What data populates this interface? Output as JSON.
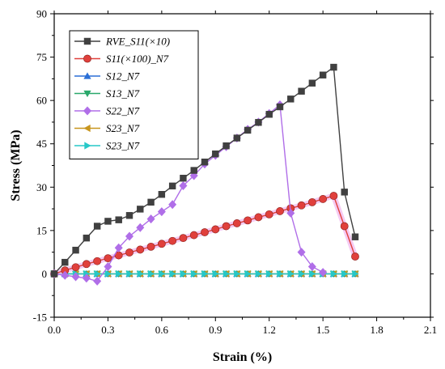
{
  "chart_data": {
    "type": "line",
    "title": "",
    "xlabel": "Strain (%)",
    "ylabel": "Stress (MPa)",
    "xlim": [
      0.0,
      2.1
    ],
    "ylim": [
      -15,
      90
    ],
    "xticks": [
      "0.0",
      "0.3",
      "0.6",
      "0.9",
      "1.2",
      "1.5",
      "1.8",
      "2.1"
    ],
    "yticks": [
      "-15",
      "0",
      "15",
      "30",
      "45",
      "60",
      "75",
      "90"
    ],
    "grid": false,
    "legend_position": "top-left",
    "series": [
      {
        "name": "RVE_S11(×10)",
        "color": "#404040",
        "marker": "square",
        "x": [
          0.0,
          0.06,
          0.12,
          0.18,
          0.24,
          0.3,
          0.36,
          0.42,
          0.48,
          0.54,
          0.6,
          0.66,
          0.72,
          0.78,
          0.84,
          0.9,
          0.96,
          1.02,
          1.08,
          1.14,
          1.2,
          1.26,
          1.32,
          1.38,
          1.44,
          1.5,
          1.56,
          1.62,
          1.68
        ],
        "y": [
          0.0,
          4.0,
          8.2,
          12.4,
          16.5,
          18.2,
          18.7,
          20.2,
          22.4,
          24.8,
          27.5,
          30.4,
          33.1,
          35.8,
          38.7,
          41.5,
          44.3,
          47.0,
          49.7,
          52.4,
          55.2,
          57.8,
          60.5,
          63.2,
          66.0,
          68.8,
          71.5,
          28.3,
          12.8
        ]
      },
      {
        "name": "S11(×100)_N7",
        "color": "#e0403c",
        "marker": "circle",
        "x": [
          0.0,
          0.06,
          0.12,
          0.18,
          0.24,
          0.3,
          0.36,
          0.42,
          0.48,
          0.54,
          0.6,
          0.66,
          0.72,
          0.78,
          0.84,
          0.9,
          0.96,
          1.02,
          1.08,
          1.14,
          1.2,
          1.26,
          1.32,
          1.38,
          1.44,
          1.5,
          1.56,
          1.62,
          1.68
        ],
        "y": [
          0.0,
          1.2,
          2.3,
          3.4,
          4.4,
          5.4,
          6.4,
          7.4,
          8.4,
          9.4,
          10.4,
          11.4,
          12.4,
          13.4,
          14.4,
          15.4,
          16.5,
          17.5,
          18.5,
          19.6,
          20.6,
          21.7,
          22.7,
          23.7,
          24.8,
          25.9,
          27.0,
          16.5,
          6.0
        ]
      },
      {
        "name": "S12_N7",
        "color": "#2b6fd6",
        "marker": "triangle-up",
        "x": [
          0.0,
          0.06,
          0.12,
          0.18,
          0.24,
          0.3,
          0.36,
          0.42,
          0.48,
          0.54,
          0.6,
          0.66,
          0.72,
          0.78,
          0.84,
          0.9,
          0.96,
          1.02,
          1.08,
          1.14,
          1.2,
          1.26,
          1.32,
          1.38,
          1.44,
          1.5,
          1.56,
          1.62,
          1.68
        ],
        "y": [
          0,
          0,
          0,
          0,
          0,
          0,
          0,
          0,
          0,
          0,
          0,
          0,
          0,
          0,
          0,
          0,
          0,
          0,
          0,
          0,
          0,
          0,
          0,
          0,
          0,
          0,
          0,
          0,
          0
        ]
      },
      {
        "name": "S13_N7",
        "color": "#2aa86b",
        "marker": "triangle-down",
        "x": [
          0.0,
          0.06,
          0.12,
          0.18,
          0.24,
          0.3,
          0.36,
          0.42,
          0.48,
          0.54,
          0.6,
          0.66,
          0.72,
          0.78,
          0.84,
          0.9,
          0.96,
          1.02,
          1.08,
          1.14,
          1.2,
          1.26,
          1.32,
          1.38,
          1.44,
          1.5,
          1.56,
          1.62,
          1.68
        ],
        "y": [
          0,
          0,
          0,
          0,
          0,
          0,
          0,
          0,
          0,
          0,
          0,
          0,
          0,
          0,
          0,
          0,
          0,
          0,
          0,
          0,
          0,
          0,
          0,
          0,
          0,
          0,
          0,
          0,
          0
        ]
      },
      {
        "name": "S22_N7",
        "color": "#b06ee8",
        "marker": "diamond",
        "x": [
          0.0,
          0.06,
          0.12,
          0.18,
          0.24,
          0.3,
          0.36,
          0.42,
          0.48,
          0.54,
          0.6,
          0.66,
          0.72,
          0.78,
          0.84,
          0.9,
          0.96,
          1.02,
          1.08,
          1.14,
          1.2,
          1.26,
          1.32,
          1.38,
          1.44,
          1.5
        ],
        "y": [
          0.0,
          -0.5,
          -1.0,
          -1.5,
          -2.5,
          2.5,
          9.0,
          13.0,
          16.0,
          19.0,
          21.5,
          24.0,
          30.5,
          34.0,
          38.0,
          41.0,
          44.0,
          47.0,
          50.0,
          52.5,
          55.5,
          58.5,
          21.0,
          7.5,
          2.5,
          0.5
        ]
      },
      {
        "name": "S23_N7",
        "color": "#c8961e",
        "marker": "triangle-left",
        "x": [
          0.0,
          0.06,
          0.12,
          0.18,
          0.24,
          0.3,
          0.36,
          0.42,
          0.48,
          0.54,
          0.6,
          0.66,
          0.72,
          0.78,
          0.84,
          0.9,
          0.96,
          1.02,
          1.08,
          1.14,
          1.2,
          1.26,
          1.32,
          1.38,
          1.44,
          1.5,
          1.56,
          1.62,
          1.68
        ],
        "y": [
          0,
          0,
          0,
          0,
          0,
          0,
          0,
          0,
          0,
          0,
          0,
          0,
          0,
          0,
          0,
          0,
          0,
          0,
          0,
          0,
          0,
          0,
          0,
          0,
          0,
          0,
          0,
          0,
          0
        ]
      },
      {
        "name": "S23_N7",
        "color": "#27c8c8",
        "marker": "triangle-right",
        "x": [
          0.0,
          0.06,
          0.12,
          0.18,
          0.24,
          0.3,
          0.36,
          0.42,
          0.48,
          0.54,
          0.6,
          0.66,
          0.72,
          0.78,
          0.84,
          0.9,
          0.96,
          1.02,
          1.08,
          1.14,
          1.2,
          1.26,
          1.32,
          1.38,
          1.44,
          1.5,
          1.56,
          1.62,
          1.68
        ],
        "y": [
          0,
          0,
          0,
          0,
          0,
          0,
          0,
          0,
          0,
          0,
          0,
          0,
          0,
          0,
          0,
          0,
          0,
          0,
          0,
          0,
          0,
          0,
          0,
          0,
          0,
          0,
          0,
          0,
          0
        ]
      }
    ]
  }
}
